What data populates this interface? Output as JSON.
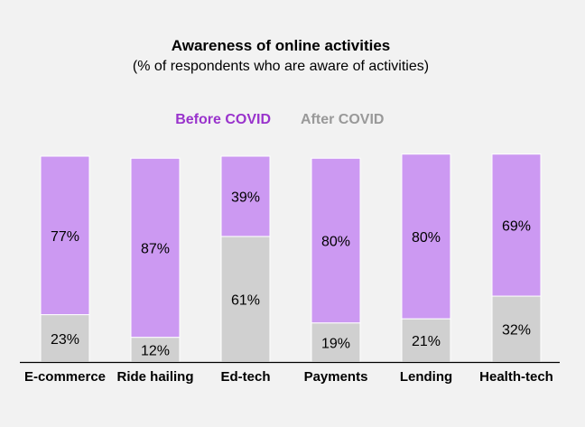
{
  "chart_data": {
    "type": "bar",
    "stacked": true,
    "title": "Awareness of online activities",
    "subtitle": "(% of respondents who are aware of activities)",
    "xlabel": "",
    "ylabel": "",
    "ylim": [
      0,
      100
    ],
    "grid": false,
    "legend_position": "top",
    "categories": [
      "E-commerce",
      "Ride hailing",
      "Ed-tech",
      "Payments",
      "Lending",
      "Health-tech"
    ],
    "series": [
      {
        "name": "After COVID",
        "color": "#d0d0d0",
        "values": [
          23,
          12,
          61,
          19,
          21,
          32
        ],
        "labels": [
          "23%",
          "12%",
          "61%",
          "19%",
          "21%",
          "32%"
        ]
      },
      {
        "name": "Before COVID",
        "color": "#cc99f2",
        "values": [
          77,
          87,
          39,
          80,
          80,
          69
        ],
        "labels": [
          "77%",
          "87%",
          "39%",
          "80%",
          "80%",
          "69%"
        ]
      }
    ],
    "legend": [
      {
        "label": "Before COVID",
        "color": "#9933cc"
      },
      {
        "label": "After COVID",
        "color": "#999999"
      }
    ],
    "axis_color": "#000000"
  }
}
